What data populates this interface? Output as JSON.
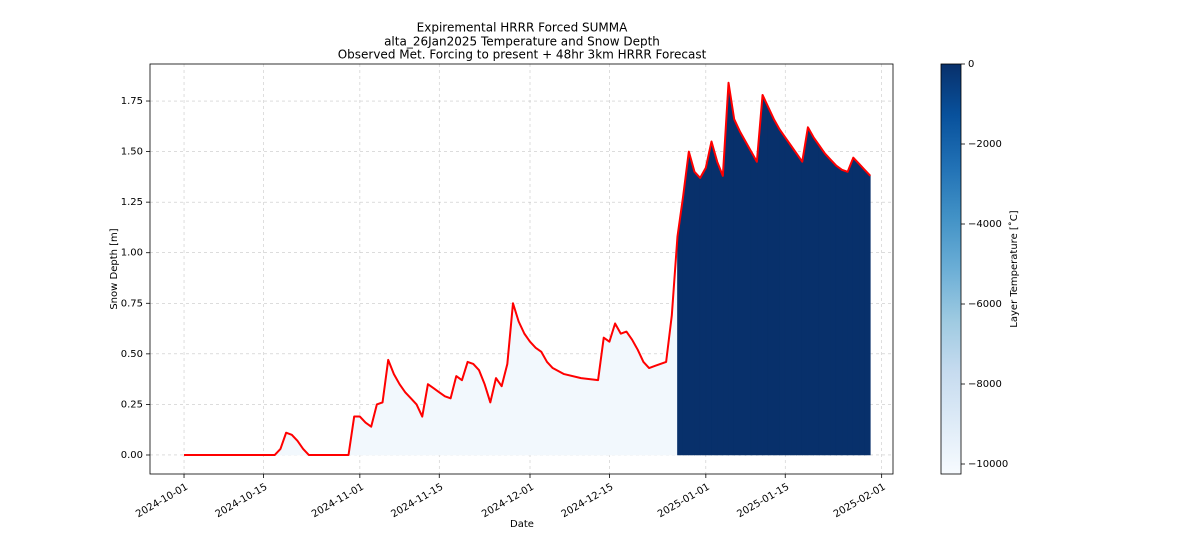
{
  "chart_data": {
    "type": "line",
    "title": "Expiremental HRRR Forced SUMMA",
    "subtitle": "alta_26Jan2025 Temperature and Snow Depth",
    "subtitle2": "Observed Met. Forcing to present + 48hr 3km HRRR Forecast",
    "x_label": "Date",
    "y_label": "Snow Depth [m]",
    "colorbar_label": "Layer Temperature [˚C]",
    "x": [
      "2024-10-01",
      "2024-10-17",
      "2024-10-18",
      "2024-10-19",
      "2024-10-20",
      "2024-10-21",
      "2024-10-22",
      "2024-10-23",
      "2024-10-30",
      "2024-10-31",
      "2024-11-01",
      "2024-11-02",
      "2024-11-03",
      "2024-11-04",
      "2024-11-05",
      "2024-11-06",
      "2024-11-07",
      "2024-11-08",
      "2024-11-09",
      "2024-11-10",
      "2024-11-11",
      "2024-11-12",
      "2024-11-13",
      "2024-11-14",
      "2024-11-15",
      "2024-11-16",
      "2024-11-17",
      "2024-11-18",
      "2024-11-19",
      "2024-11-20",
      "2024-11-21",
      "2024-11-22",
      "2024-11-23",
      "2024-11-24",
      "2024-11-25",
      "2024-11-26",
      "2024-11-27",
      "2024-11-28",
      "2024-11-29",
      "2024-11-30",
      "2024-12-01",
      "2024-12-02",
      "2024-12-03",
      "2024-12-04",
      "2024-12-05",
      "2024-12-07",
      "2024-12-10",
      "2024-12-13",
      "2024-12-14",
      "2024-12-15",
      "2024-12-16",
      "2024-12-17",
      "2024-12-18",
      "2024-12-19",
      "2024-12-20",
      "2024-12-21",
      "2024-12-22",
      "2024-12-23",
      "2024-12-24",
      "2024-12-25",
      "2024-12-26",
      "2024-12-27",
      "2024-12-28",
      "2024-12-29",
      "2024-12-30",
      "2024-12-31",
      "2025-01-01",
      "2025-01-02",
      "2025-01-03",
      "2025-01-04",
      "2025-01-05",
      "2025-01-06",
      "2025-01-07",
      "2025-01-08",
      "2025-01-09",
      "2025-01-10",
      "2025-01-11",
      "2025-01-12",
      "2025-01-13",
      "2025-01-14",
      "2025-01-15",
      "2025-01-16",
      "2025-01-17",
      "2025-01-18",
      "2025-01-19",
      "2025-01-20",
      "2025-01-21",
      "2025-01-22",
      "2025-01-23",
      "2025-01-24",
      "2025-01-25",
      "2025-01-26",
      "2025-01-27",
      "2025-01-28",
      "2025-01-29",
      "2025-01-30"
    ],
    "values": [
      0,
      0,
      0.03,
      0.11,
      0.1,
      0.07,
      0.03,
      0,
      0,
      0.19,
      0.19,
      0.16,
      0.14,
      0.25,
      0.26,
      0.47,
      0.4,
      0.35,
      0.31,
      0.28,
      0.25,
      0.19,
      0.35,
      0.33,
      0.31,
      0.29,
      0.28,
      0.39,
      0.37,
      0.46,
      0.45,
      0.42,
      0.35,
      0.26,
      0.38,
      0.34,
      0.45,
      0.75,
      0.66,
      0.6,
      0.56,
      0.53,
      0.51,
      0.46,
      0.43,
      0.4,
      0.38,
      0.37,
      0.58,
      0.56,
      0.65,
      0.6,
      0.61,
      0.57,
      0.52,
      0.46,
      0.43,
      0.44,
      0.45,
      0.46,
      0.69,
      1.08,
      1.28,
      1.5,
      1.4,
      1.37,
      1.42,
      1.55,
      1.45,
      1.38,
      1.84,
      1.66,
      1.6,
      1.55,
      1.5,
      1.45,
      1.78,
      1.72,
      1.66,
      1.61,
      1.57,
      1.53,
      1.49,
      1.45,
      1.62,
      1.57,
      1.53,
      1.49,
      1.46,
      1.43,
      1.41,
      1.4,
      1.47,
      1.44,
      1.41,
      1.38
    ],
    "layer_temperature": [
      -10000,
      -10000,
      -10000,
      -10000,
      -10000,
      -10000,
      -10000,
      -10000,
      -10000,
      -10000,
      -10000,
      -10000,
      -10000,
      -10000,
      -10000,
      -10000,
      -10000,
      -10000,
      -10000,
      -10000,
      -10000,
      -10000,
      -10000,
      -10000,
      -10000,
      -10000,
      -10000,
      -10000,
      -10000,
      -10000,
      -10000,
      -10000,
      -10000,
      -10000,
      -10000,
      -10000,
      -10000,
      -10000,
      -10000,
      -10000,
      -10000,
      -10000,
      -10000,
      -10000,
      -10000,
      -10000,
      -10000,
      -10000,
      -10000,
      -10000,
      -10000,
      -10000,
      -10000,
      -10000,
      -10000,
      -10000,
      -10000,
      -10000,
      -10000,
      -10000,
      -10000,
      0,
      0,
      0,
      0,
      0,
      0,
      0,
      0,
      0,
      0,
      0,
      0,
      0,
      0,
      0,
      0,
      0,
      0,
      0,
      0,
      0,
      0,
      0,
      0,
      0,
      0,
      0,
      0,
      0,
      0,
      0,
      0,
      0,
      0,
      0
    ],
    "color": "#ff0000",
    "xlim": [
      "2024-09-25",
      "2025-02-03"
    ],
    "xticks": [
      "2024-10-01",
      "2024-10-15",
      "2024-11-01",
      "2024-11-15",
      "2024-12-01",
      "2024-12-15",
      "2025-01-01",
      "2025-01-15",
      "2025-02-01"
    ],
    "ylim": [
      -0.094,
      1.933
    ],
    "yticks": [
      {
        "value": 0,
        "label": "0.00"
      },
      {
        "value": 0.25,
        "label": "0.25"
      },
      {
        "value": 0.5,
        "label": "0.50"
      },
      {
        "value": 0.75,
        "label": "0.75"
      },
      {
        "value": 1,
        "label": "1.00"
      },
      {
        "value": 1.25,
        "label": "1.25"
      },
      {
        "value": 1.5,
        "label": "1.50"
      },
      {
        "value": 1.75,
        "label": "1.75"
      }
    ],
    "clim": [
      -10250,
      0
    ],
    "cticks": [
      0,
      {
        "value": -2000,
        "label": "−2000"
      },
      {
        "value": -4000,
        "label": "−4000"
      },
      {
        "value": -6000,
        "label": "−6000"
      },
      {
        "value": -8000,
        "label": "−8000"
      },
      {
        "value": -10000,
        "label": "−10000"
      }
    ],
    "colormap_colors": [
      "#f7fbff",
      "#deebf7",
      "#c6dbef",
      "#9ecae1",
      "#6baed6",
      "#4292c6",
      "#2171b5",
      "#08519c",
      "#08306b"
    ],
    "grid": true
  }
}
